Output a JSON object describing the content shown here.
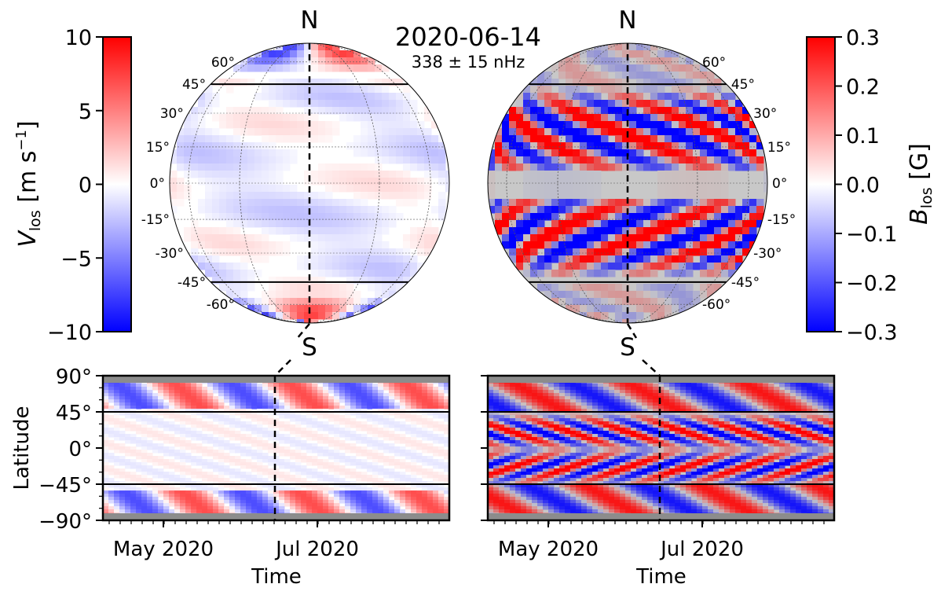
{
  "title": "2020-06-14",
  "subtitle": "338 ± 15 nHz",
  "globe_left": {
    "north_label": "N",
    "south_label": "S"
  },
  "globe_right": {
    "north_label": "N",
    "south_label": "S"
  },
  "colors": {
    "positive": "#ff0000",
    "negative": "#0000ff",
    "neutral": "#ffffff",
    "mask": "#c8c8c8",
    "band_mask": "#8c8c8c"
  },
  "chart_data": [
    {
      "type": "heatmap",
      "name": "velocity-colorbar",
      "title": "",
      "ylabel_main": "V",
      "ylabel_sub": "los",
      "ylabel_units": "[m s",
      "ylabel_exp": "−1",
      "ylim": [
        -10,
        10
      ],
      "ticks": [
        10,
        5,
        0,
        -5,
        -10
      ],
      "tick_labels": [
        "10",
        "5",
        "0",
        "−5",
        "−10"
      ]
    },
    {
      "type": "heatmap",
      "name": "magnetic-colorbar",
      "ylabel_main": "B",
      "ylabel_sub": "los",
      "ylabel_units": "[G]",
      "ylim": [
        -0.3,
        0.3
      ],
      "ticks": [
        0.3,
        0.2,
        0.1,
        0.0,
        -0.1,
        -0.2,
        -0.3
      ],
      "tick_labels": [
        "0.3",
        "0.2",
        "0.1",
        "0.0",
        "−0.1",
        "−0.2",
        "−0.3"
      ]
    },
    {
      "type": "heatmap",
      "name": "velocity-globe",
      "latitudes": [
        60,
        45,
        30,
        15,
        0,
        -15,
        -30,
        -45,
        -60
      ],
      "lat_labels_left": [
        "60°",
        "45°",
        "30°",
        "15°",
        "0°",
        "-15°",
        "-30°",
        "-45°",
        "-60°"
      ],
      "boundary_latitudes": [
        45,
        -45
      ]
    },
    {
      "type": "heatmap",
      "name": "magnetic-globe",
      "latitudes": [
        60,
        45,
        30,
        15,
        0,
        -15,
        -30,
        -45,
        -60
      ],
      "lat_labels_right": [
        "60°",
        "45°",
        "30°",
        "15°",
        "0°",
        "-15°",
        "-30°",
        "-45°",
        "-60°"
      ],
      "boundary_latitudes": [
        45,
        -45
      ]
    },
    {
      "type": "heatmap",
      "name": "velocity-time-latitude",
      "xlabel": "Time",
      "ylabel": "Latitude",
      "ylim": [
        -90,
        90
      ],
      "yticks": [
        90,
        45,
        0,
        -45,
        -90
      ],
      "ytick_labels": [
        "90°",
        "45°",
        "0°",
        "−45°",
        "−90°"
      ],
      "xtick_labels": [
        "May 2020",
        "Jul 2020"
      ],
      "current_date": "2020-06-14",
      "boundary_latitudes": [
        45,
        -45
      ]
    },
    {
      "type": "heatmap",
      "name": "magnetic-time-latitude",
      "xlabel": "Time",
      "xtick_labels": [
        "May 2020",
        "Jul 2020"
      ],
      "ylim": [
        -90,
        90
      ],
      "current_date": "2020-06-14",
      "boundary_latitudes": [
        45,
        -45
      ]
    }
  ]
}
